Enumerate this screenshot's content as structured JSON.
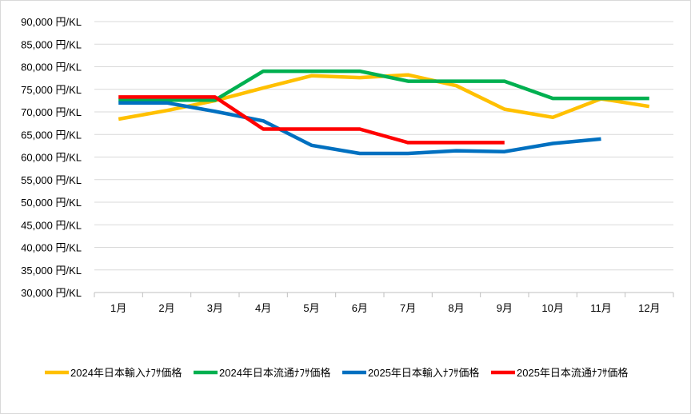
{
  "chart_data": {
    "type": "line",
    "categories": [
      "1月",
      "2月",
      "3月",
      "4月",
      "5月",
      "6月",
      "7月",
      "8月",
      "9月",
      "10月",
      "11月",
      "12月"
    ],
    "y_ticks": [
      "90,000 円/KL",
      "85,000 円/KL",
      "80,000 円/KL",
      "75,000 円/KL",
      "70,000 円/KL",
      "65,000 円/KL",
      "60,000 円/KL",
      "55,000 円/KL",
      "50,000 円/KL",
      "45,000 円/KL",
      "40,000 円/KL",
      "35,000 円/KL",
      "30,000 円/KL"
    ],
    "ylim": [
      30000,
      90000
    ],
    "grid": true,
    "legend_position": "bottom",
    "series": [
      {
        "name": "2024年日本輸入ﾅﾌｻ価格",
        "color": "#FFC000",
        "values": [
          68400,
          70300,
          72500,
          75300,
          78000,
          77600,
          78200,
          75800,
          70600,
          68800,
          72900,
          71200
        ]
      },
      {
        "name": "2024年日本流通ﾅﾌｻ価格",
        "color": "#00B050",
        "values": [
          72600,
          72600,
          72600,
          79000,
          79000,
          79000,
          76800,
          76800,
          76800,
          73000,
          73000,
          73000
        ]
      },
      {
        "name": "2025年日本輸入ﾅﾌｻ価格",
        "color": "#0070C0",
        "values": [
          72000,
          72000,
          70100,
          68000,
          62600,
          60800,
          60800,
          61400,
          61200,
          63000,
          64000,
          null
        ]
      },
      {
        "name": "2025年日本流通ﾅﾌｻ価格",
        "color": "#FF0000",
        "values": [
          73300,
          73300,
          73300,
          66200,
          66200,
          66200,
          63200,
          63200,
          63200,
          null,
          null,
          null
        ]
      }
    ]
  }
}
